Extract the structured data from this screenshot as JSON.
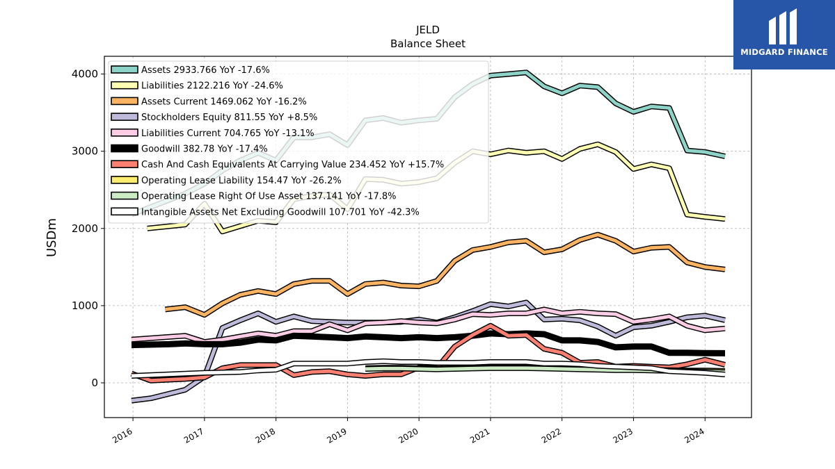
{
  "brand": {
    "name": "MIDGARD FINANCE",
    "logo_icon": "midgard-logo-icon",
    "color": "#2756a8"
  },
  "chart_data": {
    "type": "line",
    "title": "JELD",
    "subtitle": "Balance  Sheet",
    "ylabel": "USDm",
    "xlabel": "",
    "xlim": [
      2015.6,
      2024.65
    ],
    "ylim": [
      -450,
      4230
    ],
    "xticks": [
      2016,
      2017,
      2018,
      2019,
      2020,
      2021,
      2022,
      2023,
      2024
    ],
    "xtick_labels": [
      "2016",
      "2017",
      "2018",
      "2019",
      "2020",
      "2021",
      "2022",
      "2023",
      "2024"
    ],
    "yticks": [
      0,
      1000,
      2000,
      3000,
      4000
    ],
    "ytick_labels": [
      "0",
      "1000",
      "2000",
      "3000",
      "4000"
    ],
    "grid": true,
    "legend_position": "top-left",
    "series": [
      {
        "name": "Assets  2933.766 YoY -17.6%",
        "color": "#8dd3c7",
        "width": 5,
        "x": [
          2015.98,
          2016.73,
          2017.0,
          2017.25,
          2017.5,
          2017.75,
          2018.0,
          2018.25,
          2018.5,
          2018.75,
          2019.0,
          2019.25,
          2019.5,
          2019.75,
          2020.0,
          2020.25,
          2020.5,
          2020.75,
          2021.0,
          2021.25,
          2021.5,
          2021.75,
          2022.0,
          2022.25,
          2022.5,
          2022.75,
          2023.0,
          2023.25,
          2023.5,
          2023.75,
          2024.0,
          2024.28
        ],
        "y": [
          2180,
          2450,
          2580,
          2750,
          2880,
          2980,
          2880,
          3180,
          3180,
          3220,
          3080,
          3400,
          3430,
          3370,
          3400,
          3420,
          3700,
          3870,
          3980,
          4000,
          4020,
          3840,
          3750,
          3850,
          3830,
          3620,
          3510,
          3580,
          3560,
          3010,
          2990,
          2934
        ]
      },
      {
        "name": "Liabilities  2122.216 YoY -24.6%",
        "color": "#ffffb3",
        "width": 5,
        "x": [
          2016.2,
          2016.73,
          2017.0,
          2017.25,
          2017.5,
          2017.75,
          2018.0,
          2018.25,
          2018.5,
          2018.75,
          2019.0,
          2019.25,
          2019.5,
          2019.75,
          2020.0,
          2020.25,
          2020.5,
          2020.75,
          2021.0,
          2021.25,
          2021.5,
          2021.75,
          2022.0,
          2022.25,
          2022.5,
          2022.75,
          2023.0,
          2023.25,
          2023.5,
          2023.75,
          2024.0,
          2024.28
        ],
        "y": [
          2000,
          2050,
          2320,
          1960,
          2030,
          2100,
          2080,
          2380,
          2420,
          2440,
          2250,
          2640,
          2630,
          2580,
          2600,
          2650,
          2850,
          3000,
          2960,
          3010,
          2980,
          3000,
          2900,
          3030,
          3090,
          2990,
          2770,
          2830,
          2780,
          2180,
          2150,
          2122
        ]
      },
      {
        "name": "Assets Current  1469.062 YoY -16.2%",
        "color": "#fdb462",
        "width": 5,
        "x": [
          2016.45,
          2016.73,
          2017.0,
          2017.25,
          2017.5,
          2017.75,
          2018.0,
          2018.25,
          2018.5,
          2018.75,
          2019.0,
          2019.25,
          2019.5,
          2019.75,
          2020.0,
          2020.25,
          2020.5,
          2020.75,
          2021.0,
          2021.25,
          2021.5,
          2021.75,
          2022.0,
          2022.25,
          2022.5,
          2022.75,
          2023.0,
          2023.25,
          2023.5,
          2023.75,
          2024.0,
          2024.28
        ],
        "y": [
          950,
          980,
          880,
          1030,
          1140,
          1190,
          1150,
          1280,
          1320,
          1320,
          1150,
          1280,
          1300,
          1260,
          1250,
          1320,
          1580,
          1720,
          1760,
          1820,
          1840,
          1690,
          1730,
          1850,
          1920,
          1840,
          1700,
          1750,
          1760,
          1560,
          1500,
          1469
        ]
      },
      {
        "name": "Stockholders Equity  811.55 YoY +8.5%",
        "color": "#bebada",
        "width": 5,
        "x": [
          2015.98,
          2016.25,
          2016.73,
          2017.0,
          2017.25,
          2017.5,
          2017.75,
          2018.0,
          2018.25,
          2018.5,
          2018.75,
          2019.0,
          2019.25,
          2019.5,
          2019.75,
          2020.0,
          2020.25,
          2020.5,
          2020.75,
          2021.0,
          2021.25,
          2021.5,
          2021.75,
          2022.0,
          2022.25,
          2022.5,
          2022.75,
          2023.0,
          2023.25,
          2023.5,
          2023.75,
          2024.0,
          2024.28
        ],
        "y": [
          -230,
          -200,
          -90,
          80,
          710,
          810,
          900,
          790,
          860,
          800,
          790,
          780,
          780,
          780,
          790,
          820,
          780,
          850,
          930,
          1020,
          990,
          1040,
          820,
          830,
          810,
          730,
          610,
          720,
          740,
          790,
          850,
          870,
          812
        ]
      },
      {
        "name": "Liabilities Current  704.765 YoY -13.1%",
        "color": "#fccde5",
        "width": 5,
        "x": [
          2015.98,
          2016.73,
          2017.0,
          2017.25,
          2017.5,
          2017.75,
          2018.0,
          2018.25,
          2018.5,
          2018.75,
          2019.0,
          2019.25,
          2019.5,
          2019.75,
          2020.0,
          2020.25,
          2020.5,
          2020.75,
          2021.0,
          2021.25,
          2021.5,
          2021.75,
          2022.0,
          2022.25,
          2022.5,
          2022.75,
          2023.0,
          2023.25,
          2023.5,
          2023.75,
          2024.0,
          2024.28
        ],
        "y": [
          560,
          610,
          530,
          560,
          600,
          640,
          610,
          670,
          670,
          760,
          680,
          770,
          780,
          800,
          780,
          770,
          820,
          890,
          880,
          900,
          900,
          950,
          900,
          920,
          900,
          890,
          790,
          820,
          860,
          740,
          680,
          705
        ]
      },
      {
        "name": "Goodwill  382.78 YoY -17.4%",
        "color": "#000000",
        "width": 9,
        "x": [
          2015.98,
          2016.5,
          2016.73,
          2017.0,
          2017.25,
          2017.5,
          2017.75,
          2018.0,
          2018.25,
          2018.5,
          2018.75,
          2019.0,
          2019.25,
          2019.5,
          2019.75,
          2020.0,
          2020.25,
          2020.5,
          2020.75,
          2021.0,
          2021.25,
          2021.5,
          2021.75,
          2022.0,
          2022.25,
          2022.5,
          2022.75,
          2023.0,
          2023.25,
          2023.5,
          2023.75,
          2024.0,
          2024.28
        ],
        "y": [
          490,
          500,
          510,
          500,
          500,
          520,
          560,
          550,
          610,
          600,
          590,
          580,
          600,
          590,
          580,
          590,
          580,
          590,
          610,
          640,
          630,
          640,
          630,
          550,
          550,
          530,
          460,
          470,
          470,
          390,
          390,
          385,
          383
        ]
      },
      {
        "name": "Cash And Cash Equivalents At Carrying Value  234.452 YoY +15.7%",
        "color": "#fb8072",
        "width": 5,
        "x": [
          2015.98,
          2016.25,
          2016.73,
          2017.0,
          2017.25,
          2017.5,
          2017.75,
          2018.0,
          2018.25,
          2018.5,
          2018.75,
          2019.0,
          2019.25,
          2019.5,
          2019.75,
          2020.0,
          2020.25,
          2020.5,
          2020.75,
          2021.0,
          2021.25,
          2021.5,
          2021.75,
          2022.0,
          2022.25,
          2022.5,
          2022.75,
          2023.0,
          2023.25,
          2023.5,
          2023.75,
          2024.0,
          2024.28
        ],
        "y": [
          120,
          30,
          50,
          70,
          190,
          230,
          230,
          230,
          100,
          140,
          150,
          110,
          90,
          110,
          110,
          200,
          190,
          470,
          620,
          740,
          610,
          620,
          440,
          390,
          260,
          270,
          210,
          220,
          210,
          200,
          240,
          300,
          234
        ]
      },
      {
        "name": "Operating Lease Liability  154.47 YoY -26.2%",
        "color": "#ffed6f",
        "width": 5,
        "x": [
          2019.25,
          2019.5,
          2019.75,
          2020.0,
          2020.25,
          2020.5,
          2020.75,
          2021.0,
          2021.25,
          2021.5,
          2021.75,
          2022.0,
          2022.25,
          2022.5,
          2022.75,
          2023.0,
          2023.25,
          2023.5,
          2023.75,
          2024.0,
          2024.28
        ],
        "y": [
          190,
          195,
          195,
          190,
          185,
          190,
          195,
          200,
          200,
          200,
          195,
          190,
          185,
          180,
          175,
          175,
          170,
          165,
          160,
          160,
          154
        ]
      },
      {
        "name": "Operating Lease Right Of Use Asset  137.141 YoY -17.8%",
        "color": "#ccebc5",
        "width": 5,
        "x": [
          2019.25,
          2019.5,
          2019.75,
          2020.0,
          2020.25,
          2020.5,
          2020.75,
          2021.0,
          2021.25,
          2021.5,
          2021.75,
          2022.0,
          2022.25,
          2022.5,
          2022.75,
          2023.0,
          2023.25,
          2023.5,
          2023.75,
          2024.0,
          2024.28
        ],
        "y": [
          180,
          185,
          185,
          180,
          175,
          180,
          185,
          190,
          190,
          190,
          185,
          180,
          175,
          170,
          165,
          165,
          160,
          155,
          150,
          145,
          137
        ]
      },
      {
        "name": "Intangible Assets Net Excluding Goodwill  107.701 YoY -42.3%",
        "color": "#ffffff",
        "width": 5,
        "x": [
          2015.98,
          2016.5,
          2017.0,
          2017.5,
          2017.75,
          2018.0,
          2018.25,
          2018.5,
          2018.75,
          2019.0,
          2019.25,
          2019.5,
          2019.75,
          2020.0,
          2020.25,
          2020.5,
          2020.75,
          2021.0,
          2021.25,
          2021.5,
          2021.75,
          2022.0,
          2022.25,
          2022.5,
          2022.75,
          2023.0,
          2023.25,
          2023.5,
          2023.75,
          2024.0,
          2024.28
        ],
        "y": [
          90,
          110,
          130,
          140,
          160,
          170,
          250,
          250,
          250,
          250,
          270,
          280,
          270,
          270,
          260,
          260,
          260,
          270,
          270,
          270,
          250,
          250,
          240,
          220,
          210,
          200,
          190,
          150,
          140,
          130,
          108
        ]
      }
    ]
  }
}
